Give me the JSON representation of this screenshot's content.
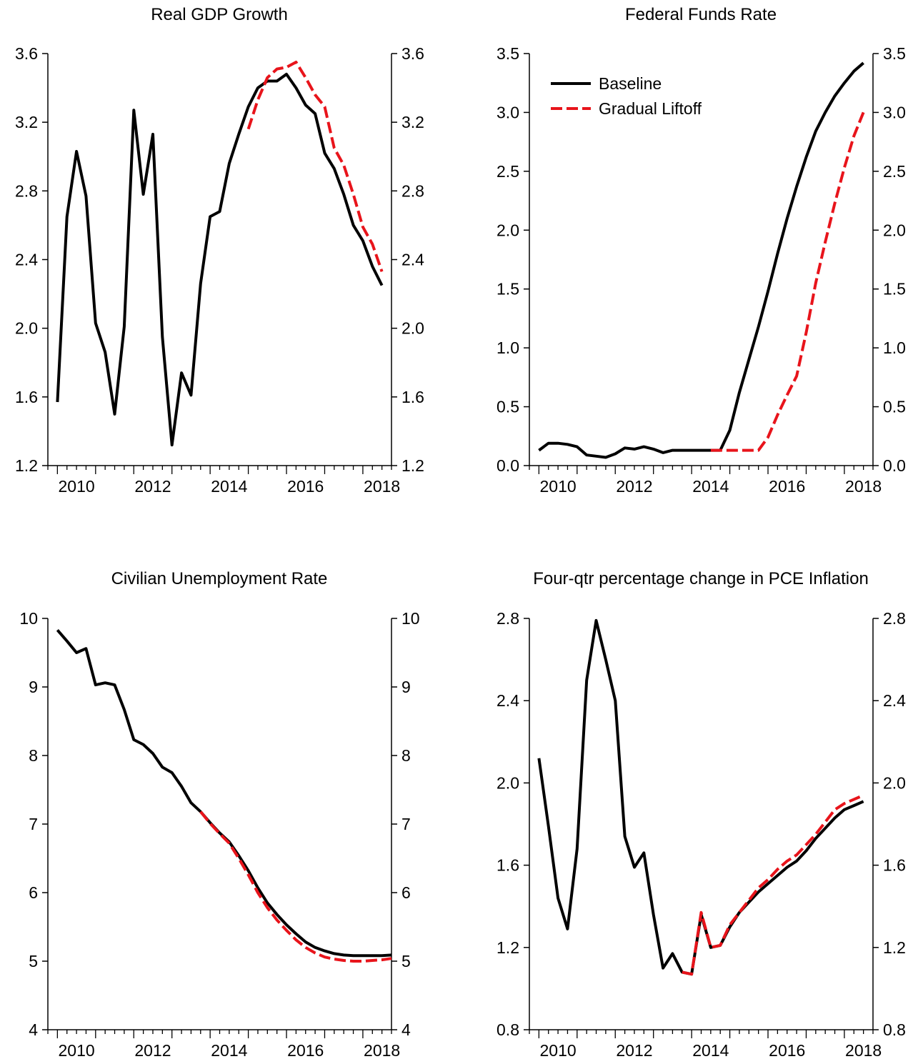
{
  "colors": {
    "baseline": "#000000",
    "gradual_liftoff": "#e8141b",
    "axis": "#000000"
  },
  "legend": {
    "placement": "top-left of Federal Funds Rate panel",
    "baseline_label": "Baseline",
    "gradual_label": "Gradual Liftoff"
  },
  "chart_data": [
    {
      "type": "line",
      "title": "Real GDP Growth",
      "xlabel": "",
      "ylabel": "",
      "xlim": [
        2009.75,
        2018.75
      ],
      "ylim": [
        1.2,
        3.6
      ],
      "yticks": [
        1.2,
        1.6,
        2.0,
        2.4,
        2.8,
        3.2,
        3.6
      ],
      "ytick_labels": [
        "1.2",
        "1.6",
        "2.0",
        "2.4",
        "2.8",
        "3.2",
        "3.6"
      ],
      "xticks": [
        2010,
        2012,
        2014,
        2016,
        2018
      ],
      "xtick_labels": [
        "2010",
        "2012",
        "2014",
        "2016",
        "2018"
      ],
      "grid": false,
      "series": [
        {
          "name": "Baseline",
          "style": "solid",
          "x": [
            2010.0,
            2010.25,
            2010.5,
            2010.75,
            2011.0,
            2011.25,
            2011.5,
            2011.75,
            2012.0,
            2012.25,
            2012.5,
            2012.75,
            2013.0,
            2013.25,
            2013.5,
            2013.75,
            2014.0,
            2014.25,
            2014.5,
            2014.75,
            2015.0,
            2015.25,
            2015.5,
            2015.75,
            2016.0,
            2016.25,
            2016.5,
            2016.75,
            2017.0,
            2017.25,
            2017.5,
            2017.75,
            2018.0,
            2018.25,
            2018.5
          ],
          "values": [
            1.57,
            2.65,
            3.03,
            2.77,
            2.03,
            1.86,
            1.5,
            2.01,
            3.27,
            2.78,
            3.13,
            1.95,
            1.32,
            1.74,
            1.61,
            2.26,
            2.65,
            2.68,
            2.96,
            3.13,
            3.29,
            3.4,
            3.44,
            3.44,
            3.48,
            3.4,
            3.3,
            3.25,
            3.02,
            2.93,
            2.78,
            2.6,
            2.51,
            2.36,
            2.25
          ]
        },
        {
          "name": "Gradual Liftoff",
          "style": "dashed",
          "x": [
            2015.0,
            2015.25,
            2015.5,
            2015.75,
            2016.0,
            2016.25,
            2016.5,
            2016.75,
            2017.0,
            2017.25,
            2017.5,
            2017.75,
            2018.0,
            2018.25,
            2018.5
          ],
          "values": [
            3.16,
            3.33,
            3.46,
            3.51,
            3.52,
            3.55,
            3.46,
            3.36,
            3.29,
            3.05,
            2.95,
            2.78,
            2.59,
            2.49,
            2.33
          ]
        }
      ]
    },
    {
      "type": "line",
      "title": "Federal Funds Rate",
      "xlabel": "",
      "ylabel": "",
      "xlim": [
        2009.75,
        2018.75
      ],
      "ylim": [
        0.0,
        3.5
      ],
      "yticks": [
        0.0,
        0.5,
        1.0,
        1.5,
        2.0,
        2.5,
        3.0,
        3.5
      ],
      "ytick_labels": [
        "0.0",
        "0.5",
        "1.0",
        "1.5",
        "2.0",
        "2.5",
        "3.0",
        "3.5"
      ],
      "xticks": [
        2010,
        2012,
        2014,
        2016,
        2018
      ],
      "xtick_labels": [
        "2010",
        "2012",
        "2014",
        "2016",
        "2018"
      ],
      "grid": false,
      "series": [
        {
          "name": "Baseline",
          "style": "solid",
          "x": [
            2010.0,
            2010.25,
            2010.5,
            2010.75,
            2011.0,
            2011.25,
            2011.5,
            2011.75,
            2012.0,
            2012.25,
            2012.5,
            2012.75,
            2013.0,
            2013.25,
            2013.5,
            2013.75,
            2014.0,
            2014.25,
            2014.5,
            2014.75,
            2015.0,
            2015.25,
            2015.5,
            2015.75,
            2016.0,
            2016.25,
            2016.5,
            2016.75,
            2017.0,
            2017.25,
            2017.5,
            2017.75,
            2018.0,
            2018.25,
            2018.5
          ],
          "values": [
            0.13,
            0.19,
            0.19,
            0.18,
            0.16,
            0.09,
            0.08,
            0.07,
            0.1,
            0.15,
            0.14,
            0.16,
            0.14,
            0.11,
            0.13,
            0.13,
            0.13,
            0.13,
            0.13,
            0.13,
            0.3,
            0.62,
            0.9,
            1.18,
            1.48,
            1.8,
            2.1,
            2.37,
            2.62,
            2.84,
            3.0,
            3.14,
            3.25,
            3.35,
            3.42
          ]
        },
        {
          "name": "Gradual Liftoff",
          "style": "dashed",
          "x": [
            2014.5,
            2014.75,
            2015.0,
            2015.25,
            2015.5,
            2015.75,
            2016.0,
            2016.25,
            2016.5,
            2016.75,
            2017.0,
            2017.25,
            2017.5,
            2017.75,
            2018.0,
            2018.25,
            2018.5
          ],
          "values": [
            0.13,
            0.13,
            0.13,
            0.13,
            0.13,
            0.13,
            0.24,
            0.43,
            0.6,
            0.76,
            1.13,
            1.55,
            1.9,
            2.23,
            2.53,
            2.8,
            3.0
          ]
        }
      ]
    },
    {
      "type": "line",
      "title": "Civilian Unemployment Rate",
      "xlabel": "",
      "ylabel": "",
      "xlim": [
        2009.75,
        2018.75
      ],
      "ylim": [
        4,
        10
      ],
      "yticks": [
        4,
        5,
        6,
        7,
        8,
        9,
        10
      ],
      "ytick_labels": [
        "4",
        "5",
        "6",
        "7",
        "8",
        "9",
        "10"
      ],
      "xticks": [
        2010,
        2012,
        2014,
        2016,
        2018
      ],
      "xtick_labels": [
        "2010",
        "2012",
        "2014",
        "2016",
        "2018"
      ],
      "grid": false,
      "series": [
        {
          "name": "Baseline",
          "style": "solid",
          "x": [
            2010.0,
            2010.25,
            2010.5,
            2010.75,
            2011.0,
            2011.25,
            2011.5,
            2011.75,
            2012.0,
            2012.25,
            2012.5,
            2012.75,
            2013.0,
            2013.25,
            2013.5,
            2013.75,
            2014.0,
            2014.25,
            2014.5,
            2014.75,
            2015.0,
            2015.25,
            2015.5,
            2015.75,
            2016.0,
            2016.25,
            2016.5,
            2016.75,
            2017.0,
            2017.25,
            2017.5,
            2017.75,
            2018.0,
            2018.25,
            2018.5,
            2018.75
          ],
          "values": [
            9.83,
            9.67,
            9.5,
            9.56,
            9.03,
            9.06,
            9.03,
            8.67,
            8.23,
            8.16,
            8.03,
            7.83,
            7.75,
            7.55,
            7.31,
            7.18,
            7.02,
            6.87,
            6.74,
            6.54,
            6.32,
            6.07,
            5.85,
            5.68,
            5.53,
            5.4,
            5.28,
            5.2,
            5.15,
            5.11,
            5.09,
            5.08,
            5.08,
            5.08,
            5.08,
            5.09
          ]
        },
        {
          "name": "Gradual Liftoff",
          "style": "dashed",
          "x": [
            2013.75,
            2014.0,
            2014.25,
            2014.5,
            2014.75,
            2015.0,
            2015.25,
            2015.5,
            2015.75,
            2016.0,
            2016.25,
            2016.5,
            2016.75,
            2017.0,
            2017.25,
            2017.5,
            2017.75,
            2018.0,
            2018.25,
            2018.5,
            2018.75
          ],
          "values": [
            7.18,
            7.01,
            6.86,
            6.72,
            6.5,
            6.26,
            6.0,
            5.78,
            5.6,
            5.45,
            5.31,
            5.2,
            5.12,
            5.06,
            5.03,
            5.01,
            5.0,
            5.0,
            5.01,
            5.02,
            5.04
          ]
        }
      ]
    },
    {
      "type": "line",
      "title": "Four-qtr percentage change in PCE Inflation",
      "xlabel": "",
      "ylabel": "",
      "xlim": [
        2009.75,
        2018.75
      ],
      "ylim": [
        0.8,
        2.8
      ],
      "yticks": [
        0.8,
        1.2,
        1.6,
        2.0,
        2.4,
        2.8
      ],
      "ytick_labels": [
        "0.8",
        "1.2",
        "1.6",
        "2.0",
        "2.4",
        "2.8"
      ],
      "xticks": [
        2010,
        2012,
        2014,
        2016,
        2018
      ],
      "xtick_labels": [
        "2010",
        "2012",
        "2014",
        "2016",
        "2018"
      ],
      "grid": false,
      "series": [
        {
          "name": "Baseline",
          "style": "solid",
          "x": [
            2010.0,
            2010.25,
            2010.5,
            2010.75,
            2011.0,
            2011.25,
            2011.5,
            2011.75,
            2012.0,
            2012.25,
            2012.5,
            2012.75,
            2013.0,
            2013.25,
            2013.5,
            2013.75,
            2014.0,
            2014.25,
            2014.5,
            2014.75,
            2015.0,
            2015.25,
            2015.5,
            2015.75,
            2016.0,
            2016.25,
            2016.5,
            2016.75,
            2017.0,
            2017.25,
            2017.5,
            2017.75,
            2018.0,
            2018.25,
            2018.5
          ],
          "values": [
            2.12,
            1.79,
            1.44,
            1.29,
            1.68,
            2.5,
            2.79,
            2.6,
            2.4,
            1.74,
            1.59,
            1.66,
            1.36,
            1.1,
            1.17,
            1.08,
            1.07,
            1.36,
            1.2,
            1.21,
            1.3,
            1.37,
            1.42,
            1.47,
            1.51,
            1.55,
            1.59,
            1.62,
            1.67,
            1.73,
            1.78,
            1.83,
            1.87,
            1.89,
            1.91
          ]
        },
        {
          "name": "Gradual Liftoff",
          "style": "dashed",
          "x": [
            2013.75,
            2014.0,
            2014.25,
            2014.5,
            2014.75,
            2015.0,
            2015.25,
            2015.5,
            2015.75,
            2016.0,
            2016.25,
            2016.5,
            2016.75,
            2017.0,
            2017.25,
            2017.5,
            2017.75,
            2018.0,
            2018.25,
            2018.5
          ],
          "values": [
            1.08,
            1.07,
            1.37,
            1.2,
            1.21,
            1.31,
            1.37,
            1.43,
            1.49,
            1.53,
            1.58,
            1.62,
            1.65,
            1.7,
            1.75,
            1.81,
            1.87,
            1.9,
            1.92,
            1.94
          ]
        }
      ]
    }
  ]
}
